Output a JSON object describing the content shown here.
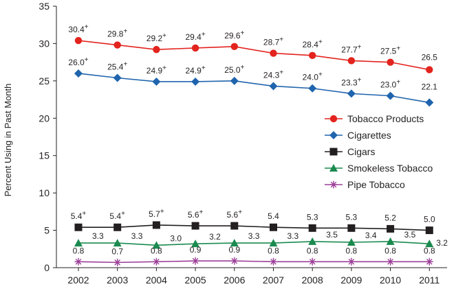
{
  "chart_data": {
    "type": "line",
    "title": "",
    "xlabel": "",
    "ylabel": "Percent Using in Past Month",
    "ylim": [
      0,
      35
    ],
    "yticks": [
      "0",
      "5",
      "10",
      "15",
      "20",
      "25",
      "30",
      "35"
    ],
    "grid": false,
    "legend_position": "right-center",
    "categories": [
      "2002",
      "2003",
      "2004",
      "2005",
      "2006",
      "2007",
      "2008",
      "2009",
      "2010",
      "2011"
    ],
    "series": [
      {
        "name": "Tobacco Products",
        "color": "#e3231d",
        "marker": "circle",
        "values": [
          30.4,
          29.8,
          29.2,
          29.4,
          29.6,
          28.7,
          28.4,
          27.7,
          27.5,
          26.5
        ],
        "labels": [
          "30.4",
          "29.8",
          "29.2",
          "29.4",
          "29.6",
          "28.7",
          "28.4",
          "27.7",
          "27.5",
          "26.5"
        ],
        "plus": [
          true,
          true,
          true,
          true,
          true,
          true,
          true,
          true,
          true,
          false
        ],
        "label_side": "above"
      },
      {
        "name": "Cigarettes",
        "color": "#1f64ad",
        "marker": "diamond",
        "values": [
          26.0,
          25.4,
          24.9,
          24.9,
          25.0,
          24.3,
          24.0,
          23.3,
          23.0,
          22.1
        ],
        "labels": [
          "26.0",
          "25.4",
          "24.9",
          "24.9",
          "25.0",
          "24.3",
          "24.0",
          "23.3",
          "23.0",
          "22.1"
        ],
        "plus": [
          true,
          true,
          true,
          true,
          true,
          true,
          true,
          true,
          true,
          false
        ],
        "label_side": "above"
      },
      {
        "name": "Cigars",
        "color": "#231f20",
        "marker": "square",
        "values": [
          5.4,
          5.4,
          5.7,
          5.6,
          5.6,
          5.4,
          5.3,
          5.3,
          5.2,
          5.0
        ],
        "labels": [
          "5.4",
          "5.4",
          "5.7",
          "5.6",
          "5.6",
          "5.4",
          "5.3",
          "5.3",
          "5.2",
          "5.0"
        ],
        "plus": [
          true,
          true,
          true,
          true,
          true,
          false,
          false,
          false,
          false,
          false
        ],
        "label_side": "above"
      },
      {
        "name": "Smokeless Tobacco",
        "color": "#1a8a4f",
        "marker": "triangle",
        "values": [
          3.3,
          3.3,
          3.0,
          3.2,
          3.3,
          3.3,
          3.5,
          3.4,
          3.5,
          3.2
        ],
        "labels": [
          "3.3",
          "3.3",
          "3.0",
          "3.2",
          "3.3",
          "3.3",
          "3.5",
          "3.4",
          "3.5",
          "3.2"
        ],
        "plus": [
          false,
          false,
          false,
          false,
          false,
          false,
          false,
          false,
          false,
          false
        ],
        "label_side": "right"
      },
      {
        "name": "Pipe Tobacco",
        "color": "#9c3f98",
        "marker": "star",
        "values": [
          0.8,
          0.7,
          0.8,
          0.9,
          0.9,
          0.8,
          0.8,
          0.8,
          0.8,
          0.8
        ],
        "labels": [
          "0.8",
          "0.7",
          "0.8",
          "0.9",
          "0.9",
          "0.8",
          "0.8",
          "0.8",
          "0.8",
          "0.8"
        ],
        "plus": [
          false,
          false,
          false,
          false,
          false,
          false,
          false,
          false,
          false,
          false
        ],
        "label_side": "above"
      }
    ]
  }
}
